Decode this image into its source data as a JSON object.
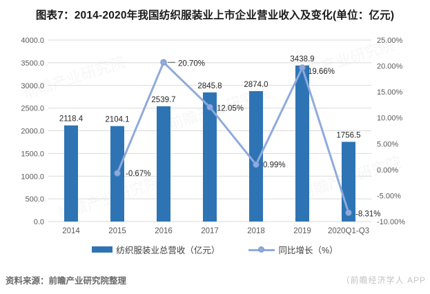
{
  "title": "图表7：2014-2020年我国纺织服装业上市企业营业收入及变化(单位：亿元)",
  "legend": {
    "bar_label": "纺织服装业总营收（亿元）",
    "line_label": "同比增长（%）"
  },
  "footer": {
    "source": "资料来源：前瞻产业研究院整理",
    "watermark": "（前瞻经济学人 APP"
  },
  "watermark_text": "前瞻产业研究院",
  "colors": {
    "bar": "#2E74B5",
    "line": "#8FAADC",
    "marker": "#8FAADC",
    "marker_edge": "#7B97CE",
    "grid": "#D9D9D9",
    "axis_text": "#595959",
    "data_label": "#262626",
    "leader": "#595959"
  },
  "chart_data": {
    "type": "bar",
    "combo": "bar+line",
    "title": "图表7：2014-2020年我国纺织服装业上市企业营业收入及变化(单位：亿元)",
    "categories": [
      "2014",
      "2015",
      "2016",
      "2017",
      "2018",
      "2019",
      "2020Q1-Q3"
    ],
    "series": [
      {
        "name": "纺织服装业总营收（亿元）",
        "chart": "bar",
        "axis": "left",
        "values": [
          2118.4,
          2104.1,
          2539.7,
          2845.8,
          2874.0,
          3438.9,
          1756.5
        ],
        "labels": [
          "2118.4",
          "2104.1",
          "2539.7",
          "2845.8",
          "2874.0",
          "3438.9",
          "1756.5"
        ]
      },
      {
        "name": "同比增长（%）",
        "chart": "line",
        "axis": "right",
        "values": [
          null,
          -0.67,
          20.7,
          12.05,
          0.99,
          19.66,
          -8.31
        ],
        "labels": [
          null,
          "-0.67%",
          "20.70%",
          "12.05%",
          "0.99%",
          "19.66%",
          "-8.31%"
        ]
      }
    ],
    "left_axis": {
      "min": 0,
      "max": 4000,
      "step": 500,
      "ticks": [
        "0.0",
        "500.0",
        "1000.0",
        "1500.0",
        "2000.0",
        "2500.0",
        "3000.0",
        "3500.0",
        "4000.0"
      ]
    },
    "right_axis": {
      "min": -10,
      "max": 25,
      "step": 5,
      "ticks": [
        "-10.00%",
        "-5.00%",
        "0.00%",
        "5.00%",
        "10.00%",
        "15.00%",
        "20.00%",
        "25.00%"
      ]
    },
    "grid": true,
    "legend_position": "bottom"
  }
}
